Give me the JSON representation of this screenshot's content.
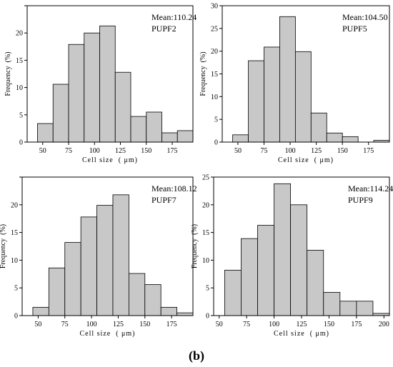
{
  "figure": {
    "caption": "(b)"
  },
  "chart_data": [
    {
      "type": "bar",
      "panel": "PUPF2",
      "annotation": [
        "Mean:110.24",
        "PUPF2"
      ],
      "xlabel": "Cell size  ( μm)",
      "ylabel": "Frequency  (%)",
      "x": [
        45,
        60,
        75,
        90,
        105,
        120,
        135,
        150,
        165,
        180
      ],
      "values": [
        3.4,
        10.6,
        17.9,
        20.0,
        21.3,
        12.8,
        4.7,
        5.5,
        1.7,
        2.1
      ],
      "xlim": [
        35,
        195
      ],
      "ylim": [
        0,
        25
      ],
      "xticks": [
        50,
        75,
        100,
        125,
        150,
        175
      ],
      "yticks": [
        0,
        5,
        10,
        15,
        20,
        25
      ],
      "ytick_labels": [
        "0",
        "5",
        "10",
        "15",
        "20",
        ""
      ]
    },
    {
      "type": "bar",
      "panel": "PUPF5",
      "annotation": [
        "Mean:104.50",
        "PUPF5"
      ],
      "xlabel": "Cell size  ( μm)",
      "ylabel": "Frequency  (%)",
      "x": [
        45,
        60,
        75,
        90,
        105,
        120,
        135,
        150,
        165,
        180
      ],
      "values": [
        1.6,
        17.9,
        20.9,
        27.6,
        19.9,
        6.4,
        2.0,
        1.2,
        0,
        0.4
      ],
      "xlim": [
        35,
        195
      ],
      "ylim": [
        0,
        30
      ],
      "xticks": [
        50,
        75,
        100,
        125,
        150,
        175
      ],
      "yticks": [
        0,
        5,
        10,
        15,
        20,
        25,
        30
      ],
      "ytick_labels": [
        "0",
        "5",
        "10",
        "15",
        "20",
        "25",
        "30"
      ]
    },
    {
      "type": "bar",
      "panel": "PUPF7",
      "annotation": [
        "Mean:108.12",
        "PUPF7"
      ],
      "xlabel": "Cell size  ( μm)",
      "ylabel": "Frequency  (%)",
      "x": [
        45,
        60,
        75,
        90,
        105,
        120,
        135,
        150,
        165,
        180
      ],
      "values": [
        1.5,
        8.6,
        13.2,
        17.8,
        19.9,
        21.8,
        7.6,
        5.6,
        1.5,
        0.5
      ],
      "xlim": [
        35,
        195
      ],
      "ylim": [
        0,
        25
      ],
      "xticks": [
        50,
        75,
        100,
        125,
        150,
        175
      ],
      "yticks": [
        0,
        5,
        10,
        15,
        20,
        25
      ],
      "ytick_labels": [
        "0",
        "5",
        "10",
        "15",
        "20",
        ""
      ]
    },
    {
      "type": "bar",
      "panel": "PUPF9",
      "annotation": [
        "Mean:114.24",
        "PUPF9"
      ],
      "xlabel": "Cell size  ( μm)",
      "ylabel": "Frequency  (%)",
      "x": [
        55,
        70,
        85,
        100,
        115,
        130,
        145,
        160,
        175,
        190
      ],
      "values": [
        8.2,
        13.9,
        16.3,
        23.8,
        20.0,
        11.8,
        4.2,
        2.6,
        2.6,
        0.4
      ],
      "xlim": [
        45,
        205
      ],
      "ylim": [
        0,
        25
      ],
      "xticks": [
        50,
        75,
        100,
        125,
        150,
        175,
        200
      ],
      "yticks": [
        0,
        5,
        10,
        15,
        20,
        25
      ],
      "ytick_labels": [
        "0",
        "5",
        "10",
        "15",
        "20",
        "25"
      ]
    }
  ]
}
